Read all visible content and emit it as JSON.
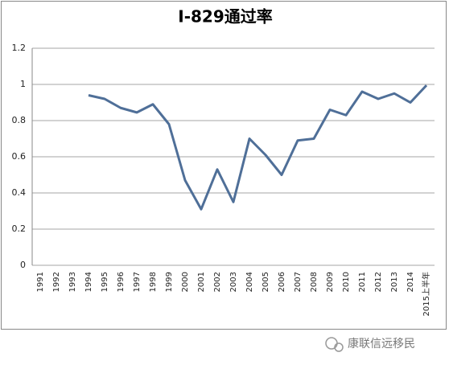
{
  "chart_data": {
    "type": "line",
    "title": "I-829通过率",
    "categories": [
      "1991",
      "1992",
      "1993",
      "1994",
      "1995",
      "1996",
      "1997",
      "1998",
      "1999",
      "2000",
      "2001",
      "2002",
      "2003",
      "2004",
      "2005",
      "2006",
      "2007",
      "2008",
      "2009",
      "2010",
      "2011",
      "2012",
      "2013",
      "2014",
      "2015上半年"
    ],
    "values": [
      null,
      null,
      null,
      0.94,
      0.92,
      0.87,
      0.845,
      0.89,
      0.78,
      0.47,
      0.31,
      0.53,
      0.35,
      0.7,
      0.61,
      0.5,
      0.69,
      0.7,
      0.86,
      0.83,
      0.96,
      0.92,
      0.95,
      0.9,
      0.995
    ],
    "color": "#4f6f98",
    "ylim": [
      0,
      1.2
    ],
    "yticks": [
      0,
      0.2,
      0.4,
      0.6,
      0.8,
      1,
      1.2
    ],
    "grid": true,
    "watermark": "康联信远移民"
  }
}
